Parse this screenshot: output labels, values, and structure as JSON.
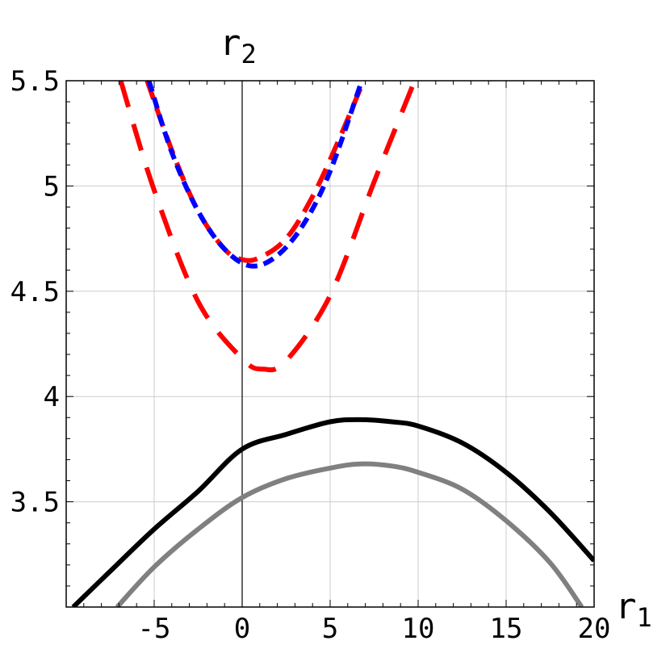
{
  "chart_data": {
    "type": "line",
    "xlabel": "r",
    "xlabel_sub": "1",
    "ylabel": "r",
    "ylabel_sub": "2",
    "xlim": [
      -10,
      20
    ],
    "ylim": [
      3.0,
      5.5
    ],
    "x_ticks": [
      -5,
      0,
      5,
      10,
      15,
      20
    ],
    "x_tick_labels": [
      "-5",
      "0",
      "5",
      "10",
      "15",
      "20"
    ],
    "y_ticks": [
      3.5,
      4,
      4.5,
      5,
      5.5
    ],
    "y_tick_labels": [
      "3.5",
      "4",
      "4.5",
      "5",
      "5.5"
    ],
    "grid": true,
    "series": [
      {
        "style": "solid",
        "color": "#000000",
        "x": [
          -9.6,
          -7.5,
          -5,
          -2.5,
          0,
          2.5,
          5,
          6.7,
          8.5,
          10,
          12.5,
          15,
          17.5,
          20
        ],
        "y": [
          3.0,
          3.17,
          3.37,
          3.55,
          3.75,
          3.82,
          3.88,
          3.89,
          3.88,
          3.86,
          3.78,
          3.64,
          3.45,
          3.22
        ]
      },
      {
        "style": "solid",
        "color": "#808080",
        "x": [
          -7.1,
          -5,
          -2.5,
          0,
          2.5,
          5,
          6.7,
          8.5,
          10,
          12.5,
          15,
          17.5,
          19.3
        ],
        "y": [
          3.0,
          3.19,
          3.37,
          3.52,
          3.61,
          3.66,
          3.68,
          3.67,
          3.64,
          3.56,
          3.41,
          3.21,
          3.0
        ]
      },
      {
        "style": "long-dash",
        "color": "#ff0000",
        "x": [
          -6.9,
          -5,
          -2.5,
          0,
          1.2,
          2.5,
          5,
          7.5,
          9.8
        ],
        "y": [
          5.5,
          4.98,
          4.45,
          4.18,
          4.13,
          4.17,
          4.48,
          5.02,
          5.5
        ]
      },
      {
        "style": "medium-dash",
        "color": "#ff0000",
        "x": [
          -5.4,
          -4,
          -2.5,
          -1,
          0,
          1,
          2.5,
          4,
          5.5,
          6.9
        ],
        "y": [
          5.5,
          5.17,
          4.88,
          4.7,
          4.65,
          4.66,
          4.75,
          4.95,
          5.22,
          5.5
        ]
      },
      {
        "style": "short-dash",
        "color": "#0000ff",
        "x": [
          -5.3,
          -4,
          -2.5,
          -1,
          0.5,
          2,
          3.5,
          5,
          6.8
        ],
        "y": [
          5.5,
          5.16,
          4.88,
          4.7,
          4.62,
          4.67,
          4.82,
          5.07,
          5.5
        ]
      }
    ]
  }
}
